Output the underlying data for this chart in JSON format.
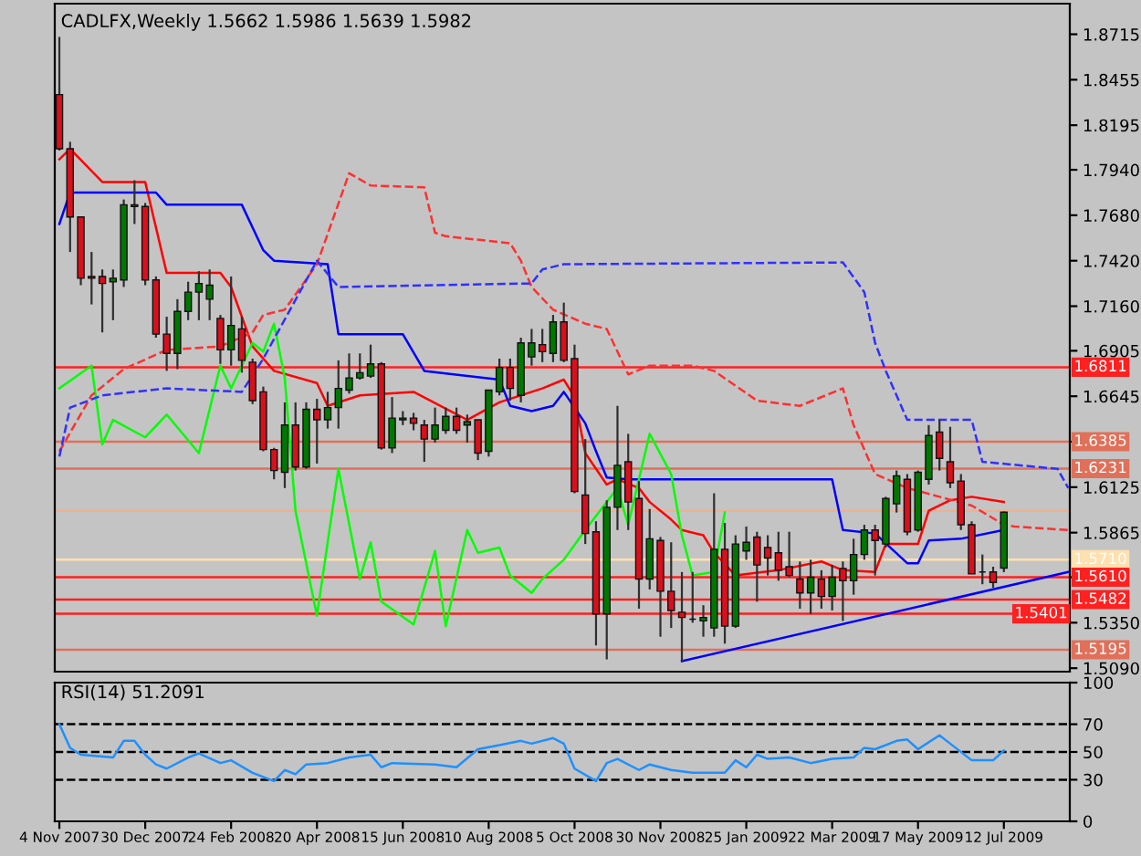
{
  "chart_data": [
    {
      "type": "candlestick",
      "title": "CADLFX,Weekly 1.5662 1.5986 1.5639 1.5982",
      "x": [
        "2007-11-04",
        "2007-11-11",
        "2007-11-18",
        "2007-11-25",
        "2007-12-02",
        "2007-12-09",
        "2007-12-16",
        "2007-12-23",
        "2007-12-30",
        "2008-01-06",
        "2008-01-13",
        "2008-01-20",
        "2008-01-27",
        "2008-02-03",
        "2008-02-10",
        "2008-02-17",
        "2008-02-24",
        "2008-03-02",
        "2008-03-09",
        "2008-03-16",
        "2008-03-23",
        "2008-03-30",
        "2008-04-06",
        "2008-04-13",
        "2008-04-20",
        "2008-04-27",
        "2008-05-04",
        "2008-05-11",
        "2008-05-18",
        "2008-05-25",
        "2008-06-01",
        "2008-06-08",
        "2008-06-15",
        "2008-06-22",
        "2008-06-29",
        "2008-07-06",
        "2008-07-13",
        "2008-07-20",
        "2008-07-27",
        "2008-08-03",
        "2008-08-10",
        "2008-08-17",
        "2008-08-24",
        "2008-08-31",
        "2008-09-07",
        "2008-09-14",
        "2008-09-21",
        "2008-09-28",
        "2008-10-05",
        "2008-10-12",
        "2008-10-19",
        "2008-10-26",
        "2008-11-02",
        "2008-11-09",
        "2008-11-16",
        "2008-11-23",
        "2008-11-30",
        "2008-12-07",
        "2008-12-14",
        "2008-12-21",
        "2008-12-28",
        "2009-01-04",
        "2009-01-11",
        "2009-01-18",
        "2009-01-25",
        "2009-02-01",
        "2009-02-08",
        "2009-02-15",
        "2009-02-22",
        "2009-03-01",
        "2009-03-08",
        "2009-03-15",
        "2009-03-22",
        "2009-03-29",
        "2009-04-05",
        "2009-04-12",
        "2009-04-19",
        "2009-04-26",
        "2009-05-03",
        "2009-05-10",
        "2009-05-17",
        "2009-05-24",
        "2009-05-31",
        "2009-06-07",
        "2009-06-14",
        "2009-06-21",
        "2009-06-28",
        "2009-07-05",
        "2009-07-12"
      ],
      "ohlc": [
        [
          1.837,
          1.87,
          1.805,
          1.806
        ],
        [
          1.806,
          1.81,
          1.747,
          1.767
        ],
        [
          1.767,
          1.767,
          1.728,
          1.732
        ],
        [
          1.733,
          1.747,
          1.717,
          1.732
        ],
        [
          1.733,
          1.737,
          1.701,
          1.729
        ],
        [
          1.73,
          1.737,
          1.708,
          1.732
        ],
        [
          1.731,
          1.777,
          1.727,
          1.774
        ],
        [
          1.773,
          1.788,
          1.763,
          1.774
        ],
        [
          1.773,
          1.775,
          1.728,
          1.731
        ],
        [
          1.731,
          1.733,
          1.698,
          1.7
        ],
        [
          1.7,
          1.71,
          1.679,
          1.689
        ],
        [
          1.689,
          1.72,
          1.68,
          1.713
        ],
        [
          1.713,
          1.73,
          1.708,
          1.724
        ],
        [
          1.724,
          1.736,
          1.708,
          1.729
        ],
        [
          1.72,
          1.737,
          1.708,
          1.728
        ],
        [
          1.709,
          1.711,
          1.683,
          1.691
        ],
        [
          1.691,
          1.733,
          1.682,
          1.705
        ],
        [
          1.703,
          1.71,
          1.678,
          1.685
        ],
        [
          1.684,
          1.686,
          1.66,
          1.662
        ],
        [
          1.667,
          1.67,
          1.633,
          1.634
        ],
        [
          1.634,
          1.635,
          1.617,
          1.622
        ],
        [
          1.621,
          1.661,
          1.612,
          1.648
        ],
        [
          1.648,
          1.661,
          1.622,
          1.624
        ],
        [
          1.624,
          1.661,
          1.623,
          1.657
        ],
        [
          1.657,
          1.663,
          1.626,
          1.651
        ],
        [
          1.651,
          1.667,
          1.646,
          1.658
        ],
        [
          1.658,
          1.685,
          1.646,
          1.669
        ],
        [
          1.668,
          1.689,
          1.666,
          1.675
        ],
        [
          1.675,
          1.689,
          1.674,
          1.678
        ],
        [
          1.676,
          1.694,
          1.675,
          1.683
        ],
        [
          1.683,
          1.684,
          1.634,
          1.635
        ],
        [
          1.635,
          1.664,
          1.632,
          1.652
        ],
        [
          1.651,
          1.656,
          1.648,
          1.652
        ],
        [
          1.652,
          1.655,
          1.645,
          1.649
        ],
        [
          1.648,
          1.651,
          1.627,
          1.64
        ],
        [
          1.64,
          1.658,
          1.638,
          1.648
        ],
        [
          1.645,
          1.658,
          1.643,
          1.653
        ],
        [
          1.653,
          1.658,
          1.643,
          1.645
        ],
        [
          1.648,
          1.654,
          1.638,
          1.65
        ],
        [
          1.651,
          1.651,
          1.628,
          1.632
        ],
        [
          1.633,
          1.668,
          1.63,
          1.668
        ],
        [
          1.667,
          1.686,
          1.665,
          1.681
        ],
        [
          1.681,
          1.686,
          1.662,
          1.669
        ],
        [
          1.665,
          1.698,
          1.661,
          1.695
        ],
        [
          1.687,
          1.703,
          1.682,
          1.695
        ],
        [
          1.694,
          1.703,
          1.684,
          1.69
        ],
        [
          1.689,
          1.711,
          1.684,
          1.707
        ],
        [
          1.707,
          1.718,
          1.684,
          1.685
        ],
        [
          1.686,
          1.694,
          1.609,
          1.61
        ],
        [
          1.608,
          1.64,
          1.58,
          1.586
        ],
        [
          1.587,
          1.593,
          1.522,
          1.54
        ],
        [
          1.54,
          1.605,
          1.514,
          1.601
        ],
        [
          1.601,
          1.659,
          1.588,
          1.625
        ],
        [
          1.627,
          1.643,
          1.588,
          1.604
        ],
        [
          1.606,
          1.616,
          1.543,
          1.56
        ],
        [
          1.56,
          1.6,
          1.554,
          1.583
        ],
        [
          1.582,
          1.584,
          1.527,
          1.553
        ],
        [
          1.553,
          1.581,
          1.532,
          1.542
        ],
        [
          1.541,
          1.564,
          1.513,
          1.538
        ],
        [
          1.537,
          1.564,
          1.535,
          1.537
        ],
        [
          1.536,
          1.545,
          1.527,
          1.538
        ],
        [
          1.532,
          1.609,
          1.527,
          1.577
        ],
        [
          1.577,
          1.592,
          1.523,
          1.533
        ],
        [
          1.533,
          1.585,
          1.532,
          1.58
        ],
        [
          1.576,
          1.59,
          1.571,
          1.581
        ],
        [
          1.584,
          1.587,
          1.547,
          1.568
        ],
        [
          1.578,
          1.585,
          1.562,
          1.572
        ],
        [
          1.575,
          1.587,
          1.559,
          1.565
        ],
        [
          1.567,
          1.587,
          1.561,
          1.562
        ],
        [
          1.56,
          1.57,
          1.543,
          1.552
        ],
        [
          1.552,
          1.571,
          1.54,
          1.561
        ],
        [
          1.56,
          1.565,
          1.543,
          1.55
        ],
        [
          1.55,
          1.568,
          1.542,
          1.561
        ],
        [
          1.566,
          1.57,
          1.536,
          1.559
        ],
        [
          1.559,
          1.583,
          1.551,
          1.574
        ],
        [
          1.574,
          1.591,
          1.571,
          1.588
        ],
        [
          1.588,
          1.591,
          1.562,
          1.582
        ],
        [
          1.58,
          1.607,
          1.578,
          1.606
        ],
        [
          1.603,
          1.622,
          1.598,
          1.619
        ],
        [
          1.617,
          1.62,
          1.585,
          1.587
        ],
        [
          1.588,
          1.622,
          1.587,
          1.621
        ],
        [
          1.617,
          1.648,
          1.614,
          1.642
        ],
        [
          1.644,
          1.651,
          1.622,
          1.629
        ],
        [
          1.627,
          1.647,
          1.612,
          1.615
        ],
        [
          1.616,
          1.62,
          1.588,
          1.591
        ],
        [
          1.591,
          1.593,
          1.563,
          1.563
        ],
        [
          1.564,
          1.574,
          1.557,
          1.564
        ],
        [
          1.564,
          1.567,
          1.555,
          1.558
        ],
        [
          1.5662,
          1.5986,
          1.5639,
          1.5982
        ]
      ],
      "series": [
        {
          "type": "line",
          "color": "#ff0000",
          "line_style": "solid",
          "x": [
            "2007-11-04",
            "2007-11-11",
            "2007-12-02",
            "2007-12-30",
            "2008-01-13",
            "2008-02-17",
            "2008-02-24",
            "2008-03-09",
            "2008-03-23",
            "2008-04-20",
            "2008-04-27",
            "2008-05-18",
            "2008-06-22",
            "2008-07-27",
            "2008-08-17",
            "2008-09-14",
            "2008-09-28",
            "2008-10-05",
            "2008-10-12",
            "2008-10-26",
            "2008-11-02",
            "2008-11-16",
            "2008-11-23",
            "2008-12-07",
            "2008-12-14",
            "2008-12-28",
            "2009-01-04",
            "2009-01-18",
            "2009-02-15",
            "2009-03-15",
            "2009-03-29",
            "2009-04-19",
            "2009-04-26",
            "2009-05-17",
            "2009-05-24",
            "2009-06-07",
            "2009-06-21",
            "2009-07-12"
          ],
          "values": [
            1.8,
            1.806,
            1.787,
            1.787,
            1.735,
            1.735,
            1.727,
            1.693,
            1.679,
            1.672,
            1.659,
            1.665,
            1.667,
            1.651,
            1.661,
            1.669,
            1.674,
            1.664,
            1.632,
            1.614,
            1.617,
            1.612,
            1.604,
            1.594,
            1.588,
            1.585,
            1.575,
            1.562,
            1.565,
            1.57,
            1.565,
            1.564,
            1.58,
            1.58,
            1.599,
            1.605,
            1.607,
            1.604
          ]
        },
        {
          "type": "line",
          "color": "#0000ff",
          "line_style": "solid",
          "x": [
            "2007-11-04",
            "2007-11-11",
            "2008-01-06",
            "2008-01-13",
            "2008-03-02",
            "2008-03-16",
            "2008-03-23",
            "2008-04-27",
            "2008-05-04",
            "2008-06-15",
            "2008-06-29",
            "2008-08-17",
            "2008-08-24",
            "2008-09-07",
            "2008-09-21",
            "2008-09-28",
            "2008-10-12",
            "2008-10-19",
            "2008-10-26",
            "2008-11-09",
            "2009-03-22",
            "2009-03-29",
            "2009-04-19",
            "2009-05-10",
            "2009-05-17",
            "2009-05-24",
            "2009-06-14",
            "2009-07-12"
          ],
          "values": [
            1.763,
            1.781,
            1.781,
            1.774,
            1.774,
            1.748,
            1.742,
            1.74,
            1.7,
            1.7,
            1.679,
            1.674,
            1.659,
            1.656,
            1.659,
            1.667,
            1.649,
            1.633,
            1.618,
            1.617,
            1.617,
            1.588,
            1.586,
            1.569,
            1.569,
            1.582,
            1.583,
            1.588
          ]
        },
        {
          "type": "line",
          "color": "#00ff00",
          "line_style": "solid",
          "x": [
            "2007-11-04",
            "2007-11-25",
            "2007-12-02",
            "2007-12-09",
            "2007-12-30",
            "2008-01-13",
            "2008-02-03",
            "2008-02-17",
            "2008-02-24",
            "2008-03-09",
            "2008-03-16",
            "2008-03-23",
            "2008-03-30",
            "2008-04-06",
            "2008-04-20",
            "2008-05-04",
            "2008-05-18",
            "2008-05-25",
            "2008-06-01",
            "2008-06-22",
            "2008-07-06",
            "2008-07-13",
            "2008-07-27",
            "2008-08-03",
            "2008-08-17",
            "2008-08-24",
            "2008-09-07",
            "2008-09-14",
            "2008-09-28",
            "2008-10-12",
            "2008-11-02",
            "2008-11-09",
            "2008-11-23",
            "2008-12-07",
            "2008-12-14",
            "2008-12-21",
            "2009-01-04",
            "2009-01-11"
          ],
          "values": [
            1.669,
            1.682,
            1.637,
            1.651,
            1.641,
            1.654,
            1.632,
            1.682,
            1.669,
            1.695,
            1.69,
            1.706,
            1.675,
            1.599,
            1.539,
            1.623,
            1.56,
            1.581,
            1.547,
            1.534,
            1.576,
            1.533,
            1.588,
            1.575,
            1.578,
            1.562,
            1.552,
            1.56,
            1.571,
            1.588,
            1.612,
            1.591,
            1.643,
            1.62,
            1.585,
            1.562,
            1.564,
            1.598
          ]
        },
        {
          "type": "line",
          "color": "#ff3030",
          "line_style": "dashed",
          "x": [
            "2007-11-04",
            "2007-11-25",
            "2007-12-16",
            "2008-01-13",
            "2008-02-17",
            "2008-03-09",
            "2008-03-16",
            "2008-03-30",
            "2008-04-20",
            "2008-05-11",
            "2008-05-25",
            "2008-06-29",
            "2008-07-06",
            "2008-07-13",
            "2008-08-24",
            "2008-08-31",
            "2008-09-07",
            "2008-09-21",
            "2008-10-12",
            "2008-10-26",
            "2008-11-09",
            "2008-11-23",
            "2008-12-21",
            "2009-01-04",
            "2009-02-01",
            "2009-03-01",
            "2009-03-29",
            "2009-04-05",
            "2009-04-19",
            "2009-05-10",
            "2009-05-31",
            "2009-06-21",
            "2009-07-12",
            "2009-07-19",
            "2009-08-23"
          ],
          "values": [
            1.633,
            1.665,
            1.68,
            1.691,
            1.693,
            1.701,
            1.711,
            1.714,
            1.74,
            1.792,
            1.785,
            1.784,
            1.758,
            1.756,
            1.752,
            1.742,
            1.727,
            1.714,
            1.706,
            1.703,
            1.677,
            1.682,
            1.682,
            1.679,
            1.662,
            1.659,
            1.669,
            1.648,
            1.62,
            1.612,
            1.607,
            1.602,
            1.591,
            1.59,
            1.588
          ]
        },
        {
          "type": "line",
          "color": "#3030ff",
          "line_style": "dashed",
          "x": [
            "2007-11-04",
            "2007-11-11",
            "2007-12-02",
            "2008-01-13",
            "2008-03-02",
            "2008-03-16",
            "2008-04-20",
            "2008-05-04",
            "2008-09-07",
            "2008-09-14",
            "2008-09-28",
            "2009-03-29",
            "2009-04-12",
            "2009-04-19",
            "2009-04-26",
            "2009-05-10",
            "2009-06-21",
            "2009-06-28",
            "2009-08-16",
            "2009-08-23"
          ],
          "values": [
            1.63,
            1.658,
            1.665,
            1.669,
            1.667,
            1.686,
            1.742,
            1.727,
            1.729,
            1.737,
            1.74,
            1.741,
            1.724,
            1.695,
            1.679,
            1.651,
            1.651,
            1.627,
            1.623,
            1.612
          ]
        },
        {
          "type": "line",
          "color": "#0000ff",
          "line_style": "solid",
          "x": [
            "2008-12-14",
            "2009-08-23"
          ],
          "values": [
            1.513,
            1.564
          ]
        }
      ],
      "ref_lines": [
        {
          "axis": "y",
          "value": 1.6811,
          "label": "1.6811",
          "color": "#ff2020"
        },
        {
          "axis": "y",
          "value": 1.6385,
          "label": "1.6385",
          "color": "#e0705a"
        },
        {
          "axis": "y",
          "value": 1.6231,
          "label": "1.6231",
          "color": "#e0705a"
        },
        {
          "axis": "y",
          "value": 1.599,
          "color": "#f0b090"
        },
        {
          "axis": "y",
          "value": 1.571,
          "label": "1.5710",
          "color": "#ffe0b0"
        },
        {
          "axis": "y",
          "value": 1.561,
          "label": "1.5610",
          "color": "#ff2020"
        },
        {
          "axis": "y",
          "value": 1.5482,
          "label": "1.5482",
          "color": "#ff2020"
        },
        {
          "axis": "y",
          "value": 1.5401,
          "label": "1.5401",
          "color": "#ff2020"
        },
        {
          "axis": "y",
          "value": 1.5195,
          "label": "1.5195",
          "color": "#e0705a"
        }
      ],
      "xlim": [
        "2007-11-01",
        "2009-08-24"
      ],
      "ylim": [
        1.507,
        1.889
      ],
      "yticks": [
        1.8715,
        1.8455,
        1.8195,
        {
          "value": 1.794,
          "label": "1.7940"
        },
        {
          "value": 1.768,
          "label": "1.7680"
        },
        {
          "value": 1.742,
          "label": "1.7420"
        },
        {
          "value": 1.716,
          "label": "1.7160"
        },
        1.6905,
        1.6645,
        {
          "value": 1.6385,
          "label": null
        },
        1.6125,
        1.5865,
        {
          "value": 1.561,
          "label": null
        },
        {
          "value": 1.535,
          "label": "1.5350"
        },
        {
          "value": 1.509,
          "label": "1.5090"
        }
      ],
      "tick_labels": "y"
    },
    {
      "type": "line",
      "title": "RSI(14) 51.2091",
      "series": [
        {
          "color": "#1e90ff",
          "x": [
            "2007-11-04",
            "2007-11-11",
            "2007-11-18",
            "2007-12-09",
            "2007-12-16",
            "2007-12-23",
            "2007-12-30",
            "2008-01-06",
            "2008-01-13",
            "2008-01-27",
            "2008-02-03",
            "2008-02-17",
            "2008-02-24",
            "2008-03-09",
            "2008-03-23",
            "2008-03-30",
            "2008-04-06",
            "2008-04-13",
            "2008-04-27",
            "2008-05-11",
            "2008-05-25",
            "2008-06-01",
            "2008-06-08",
            "2008-07-06",
            "2008-07-20",
            "2008-08-03",
            "2008-08-17",
            "2008-08-31",
            "2008-09-07",
            "2008-09-21",
            "2008-09-28",
            "2008-10-05",
            "2008-10-19",
            "2008-10-26",
            "2008-11-02",
            "2008-11-16",
            "2008-11-23",
            "2008-12-07",
            "2008-12-21",
            "2009-01-11",
            "2009-01-18",
            "2009-01-25",
            "2009-02-01",
            "2009-02-08",
            "2009-02-22",
            "2009-03-08",
            "2009-03-22",
            "2009-04-05",
            "2009-04-12",
            "2009-04-19",
            "2009-05-03",
            "2009-05-10",
            "2009-05-17",
            "2009-05-31",
            "2009-06-07",
            "2009-06-21",
            "2009-07-05",
            "2009-07-12"
          ],
          "values": [
            70,
            53,
            48,
            46,
            58,
            58,
            48,
            41,
            38,
            46,
            49,
            42,
            44,
            35,
            29,
            37,
            34,
            41,
            42,
            46,
            48,
            39,
            42,
            41,
            39,
            52,
            55,
            58,
            56,
            60,
            56,
            38,
            29,
            42,
            45,
            37,
            41,
            37,
            35,
            35,
            44,
            39,
            48,
            45,
            46,
            42,
            45,
            46,
            53,
            52,
            58,
            59,
            52,
            62,
            56,
            44,
            44,
            51
          ]
        }
      ],
      "ref_lines": [
        {
          "axis": "y",
          "value": 70,
          "color": "#000000",
          "line_style": "dashed"
        },
        {
          "axis": "y",
          "value": 50,
          "color": "#000000",
          "line_style": "dashed"
        },
        {
          "axis": "y",
          "value": 30,
          "color": "#000000",
          "line_style": "dashed"
        }
      ],
      "xlim": [
        "2007-11-01",
        "2009-08-24"
      ],
      "ylim": [
        0,
        100
      ],
      "yticks": [
        100,
        70,
        50,
        30,
        0
      ],
      "xticks": [
        {
          "value": "2007-11-04",
          "label": "4 Nov 2007"
        },
        {
          "value": "2007-12-30",
          "label": "30 Dec 2007"
        },
        {
          "value": "2008-02-24",
          "label": "24 Feb 2008"
        },
        {
          "value": "2008-04-20",
          "label": "20 Apr 2008"
        },
        {
          "value": "2008-06-15",
          "label": "15 Jun 2008"
        },
        {
          "value": "2008-08-10",
          "label": "10 Aug 2008"
        },
        {
          "value": "2008-10-05",
          "label": "5 Oct 2008"
        },
        {
          "value": "2008-11-30",
          "label": "30 Nov 2008"
        },
        {
          "value": "2009-01-25",
          "label": "25 Jan 2009"
        },
        {
          "value": "2009-03-22",
          "label": "22 Mar 2009"
        },
        {
          "value": "2009-05-17",
          "label": "17 May 2009"
        },
        {
          "value": "2009-07-12",
          "label": "12 Jul 2009"
        }
      ]
    }
  ]
}
